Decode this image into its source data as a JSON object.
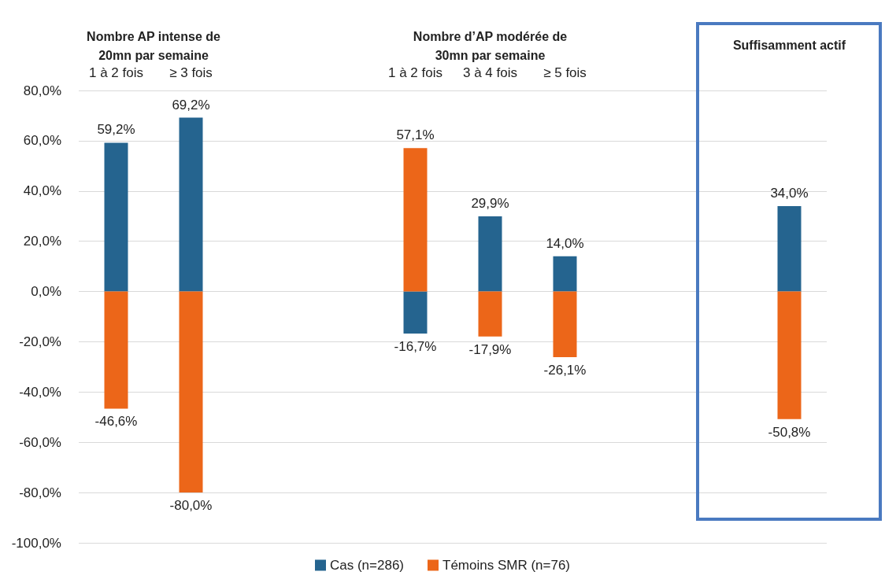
{
  "chart_data": {
    "type": "bar",
    "stacked": true,
    "annotations": [
      "Nombre AP intense de 20mn par semaine",
      "Nombre d’AP modérée de 30mn par semaine",
      "Suffisamment actif"
    ],
    "categories": [
      "1 à 2 fois",
      "≥ 3 fois",
      null,
      null,
      "1 à 2 fois",
      "3 à 4 fois",
      "≥ 5 fois",
      null,
      null,
      null
    ],
    "series": [
      {
        "name": "Cas (n=286)",
        "color": "#25648f",
        "values": [
          59.2,
          69.2,
          null,
          null,
          -16.7,
          29.9,
          14.0,
          null,
          null,
          34.0
        ],
        "value_labels": [
          "59,2%",
          "69,2%",
          null,
          null,
          "-16,7%",
          "29,9%",
          "14,0%",
          null,
          null,
          "34,0%"
        ]
      },
      {
        "name": "Témoins SMR (n=76)",
        "color": "#ec6619",
        "values": [
          -46.6,
          -80.0,
          null,
          null,
          57.1,
          -17.9,
          -26.1,
          null,
          null,
          -50.8
        ],
        "value_labels": [
          "-46,6%",
          "-80,0%",
          null,
          null,
          "57,1%",
          "-17,9%",
          "-26,1%",
          null,
          null,
          "-50,8%"
        ]
      }
    ],
    "ylim": [
      -100,
      80
    ],
    "yticks": [
      {
        "value": -100,
        "label": "-100,0%"
      },
      {
        "value": -80,
        "label": "-80,0%"
      },
      {
        "value": -60,
        "label": "-60,0%"
      },
      {
        "value": -40,
        "label": "-40,0%"
      },
      {
        "value": -20,
        "label": "-20,0%"
      },
      {
        "value": 0,
        "label": "0,0%"
      },
      {
        "value": 20,
        "label": "20,0%"
      },
      {
        "value": 40,
        "label": "40,0%"
      },
      {
        "value": 60,
        "label": "60,0%"
      },
      {
        "value": 80,
        "label": "80,0%"
      }
    ],
    "grid": "y",
    "legend": "bottom"
  }
}
